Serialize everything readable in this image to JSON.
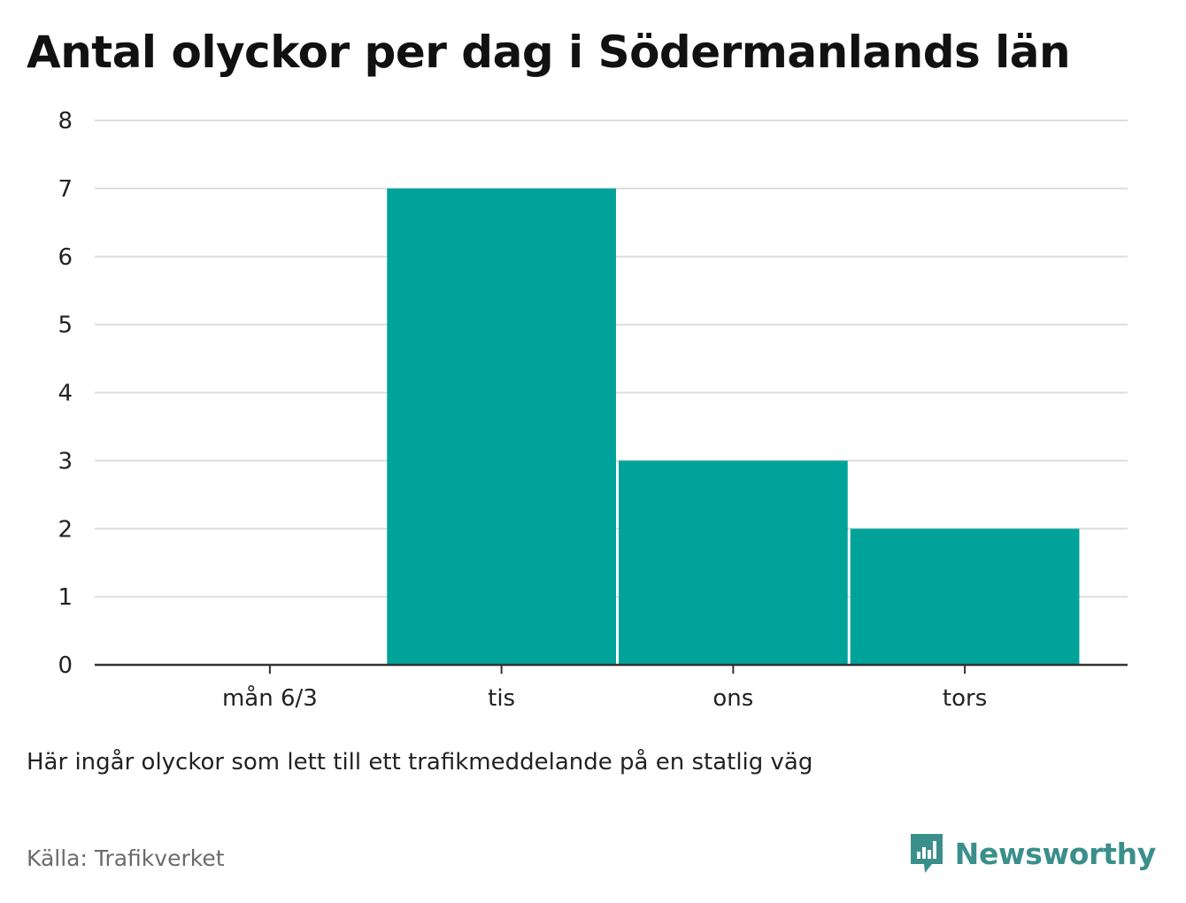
{
  "title": "Antal olyckor per dag i Södermanlands län",
  "note": "Här ingår olyckor som lett till ett trafikmeddelande på en statlig väg",
  "source": "Källa: Trafikverket",
  "brand": {
    "name": "Newsworthy",
    "icon": "newsworthy-logo-icon",
    "color": "#3b8f8a"
  },
  "colors": {
    "bar": "#00a39a",
    "grid": "#dddddd",
    "axis": "#333333"
  },
  "chart_data": {
    "type": "bar",
    "title": "Antal olyckor per dag i Södermanlands län",
    "xlabel": "",
    "ylabel": "",
    "categories": [
      "mån 6/3",
      "tis",
      "ons",
      "tors"
    ],
    "values": [
      0,
      7,
      3,
      2
    ],
    "ylim": [
      0,
      8
    ],
    "yticks": [
      0,
      1,
      2,
      3,
      4,
      5,
      6,
      7,
      8
    ],
    "grid": true,
    "legend": "none"
  }
}
